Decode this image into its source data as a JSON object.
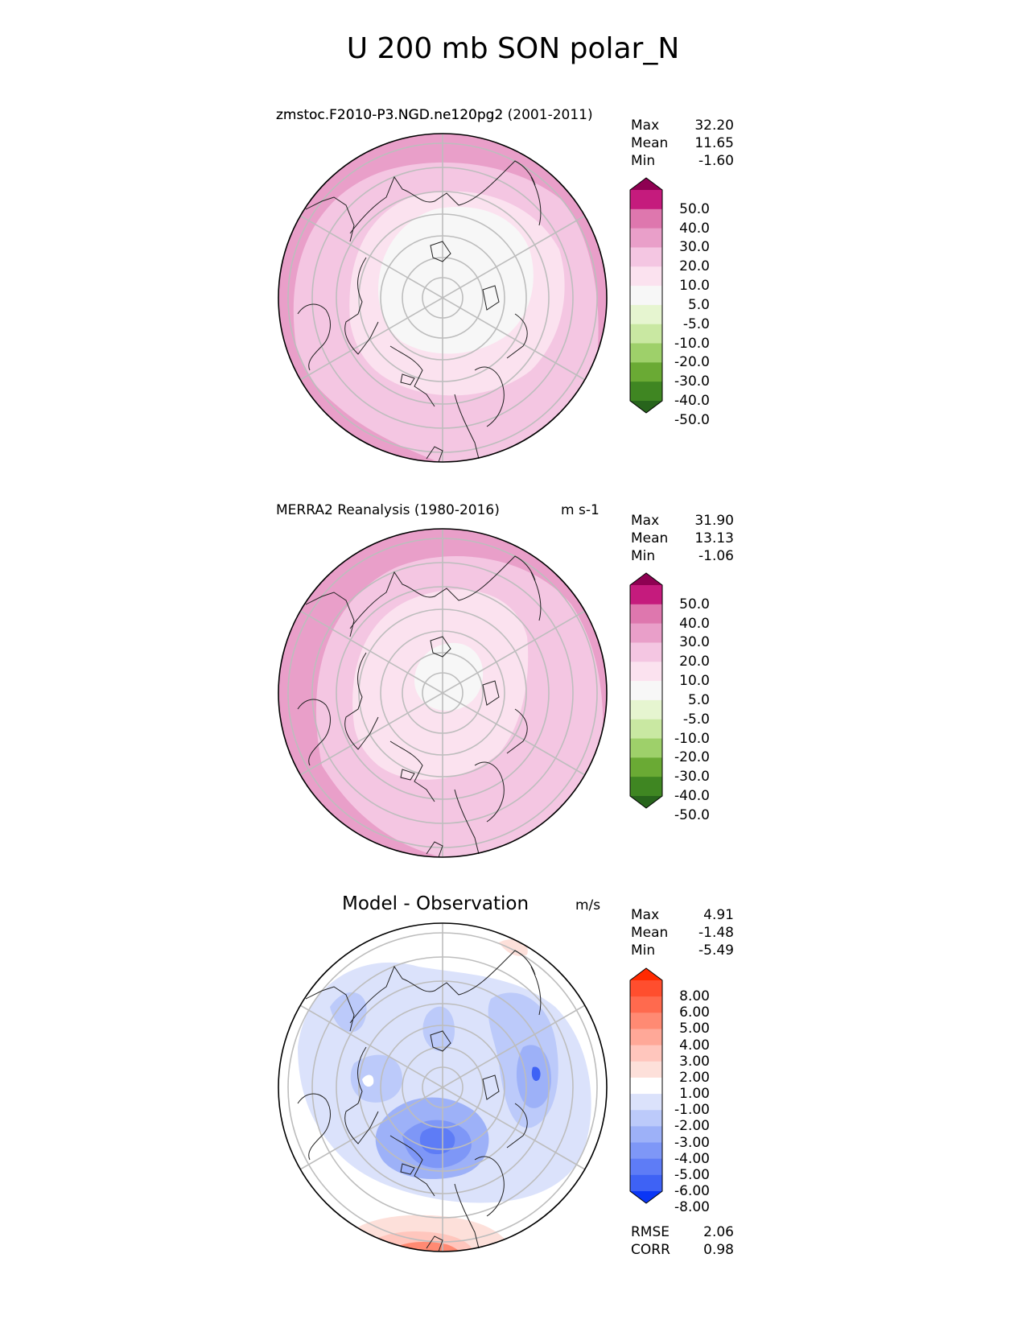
{
  "title": "U 200 mb SON polar_N",
  "panels": [
    {
      "id": "test",
      "title_overlay_a": "zmstoc F2010-P3.NGD.ne120pg2",
      "title_overlay_b": "zmstoc.F2010-P3.NGD.ne120pg2 (2001-2011)",
      "units": "",
      "stats": [
        {
          "label": "Max",
          "value": "32.20"
        },
        {
          "label": "Mean",
          "value": "11.65"
        },
        {
          "label": "Min",
          "value": "-1.60"
        }
      ],
      "colorbar": {
        "labels": [
          "50.0",
          "40.0",
          "30.0",
          "20.0",
          "10.0",
          "5.0",
          "-5.0",
          "-10.0",
          "-20.0",
          "-30.0",
          "-40.0",
          "-50.0"
        ],
        "colors": [
          "#8e0152",
          "#c51b7d",
          "#de77ae",
          "#e99fc9",
          "#f4c6e2",
          "#fbe2ef",
          "#f7f7f7",
          "#e6f5d0",
          "#c9e8a2",
          "#9ed06a",
          "#6aaa34",
          "#3f8622",
          "#27641c"
        ]
      }
    },
    {
      "id": "ref",
      "title": "MERRA2 Reanalysis (1980-2016)",
      "units": "m s-1",
      "stats": [
        {
          "label": "Max",
          "value": "31.90"
        },
        {
          "label": "Mean",
          "value": "13.13"
        },
        {
          "label": "Min",
          "value": "-1.06"
        }
      ],
      "colorbar": {
        "labels": [
          "50.0",
          "40.0",
          "30.0",
          "20.0",
          "10.0",
          "5.0",
          "-5.0",
          "-10.0",
          "-20.0",
          "-30.0",
          "-40.0",
          "-50.0"
        ],
        "colors": [
          "#8e0152",
          "#c51b7d",
          "#de77ae",
          "#e99fc9",
          "#f4c6e2",
          "#fbe2ef",
          "#f7f7f7",
          "#e6f5d0",
          "#c9e8a2",
          "#9ed06a",
          "#6aaa34",
          "#3f8622",
          "#27641c"
        ]
      }
    },
    {
      "id": "diff",
      "title": "Model - Observation",
      "units": "m/s",
      "stats": [
        {
          "label": "Max",
          "value": "4.91"
        },
        {
          "label": "Mean",
          "value": "-1.48"
        },
        {
          "label": "Min",
          "value": "-5.49"
        }
      ],
      "colorbar": {
        "labels": [
          "8.00",
          "6.00",
          "5.00",
          "4.00",
          "3.00",
          "2.00",
          "1.00",
          "-1.00",
          "-2.00",
          "-3.00",
          "-4.00",
          "-5.00",
          "-6.00",
          "-8.00"
        ],
        "colors": [
          "#ff2a00",
          "#ff4e2e",
          "#ff6a4e",
          "#ff8a73",
          "#ffa898",
          "#ffc6bd",
          "#fde0da",
          "#ffffff",
          "#dbe2fb",
          "#bccafa",
          "#9db1f8",
          "#7e97f7",
          "#5e7cf6",
          "#3e62f5",
          "#0a36f5"
        ]
      },
      "extra_stats": [
        {
          "label": "RMSE",
          "value": "2.06"
        },
        {
          "label": "CORR",
          "value": "0.98"
        }
      ]
    }
  ],
  "chart_data": [
    {
      "type": "heatmap",
      "projection": "north-polar-stereographic",
      "title": "zmstoc.F2010-P3.NGD.ne120pg2 (2001-2011)",
      "variable": "U 200 mb SON",
      "stats": {
        "max": 32.2,
        "mean": 11.65,
        "min": -1.6
      },
      "contour_levels": [
        -50,
        -40,
        -30,
        -20,
        -10,
        -5,
        5,
        10,
        20,
        30,
        40,
        50
      ],
      "grid": true
    },
    {
      "type": "heatmap",
      "projection": "north-polar-stereographic",
      "title": "MERRA2 Reanalysis (1980-2016)",
      "units": "m s-1",
      "stats": {
        "max": 31.9,
        "mean": 13.13,
        "min": -1.06
      },
      "contour_levels": [
        -50,
        -40,
        -30,
        -20,
        -10,
        -5,
        5,
        10,
        20,
        30,
        40,
        50
      ],
      "grid": true
    },
    {
      "type": "heatmap",
      "projection": "north-polar-stereographic",
      "title": "Model - Observation",
      "units": "m/s",
      "stats": {
        "max": 4.91,
        "mean": -1.48,
        "min": -5.49,
        "rmse": 2.06,
        "corr": 0.98
      },
      "contour_levels": [
        -8,
        -6,
        -5,
        -4,
        -3,
        -2,
        -1,
        1,
        2,
        3,
        4,
        5,
        6,
        8
      ],
      "grid": true
    }
  ]
}
